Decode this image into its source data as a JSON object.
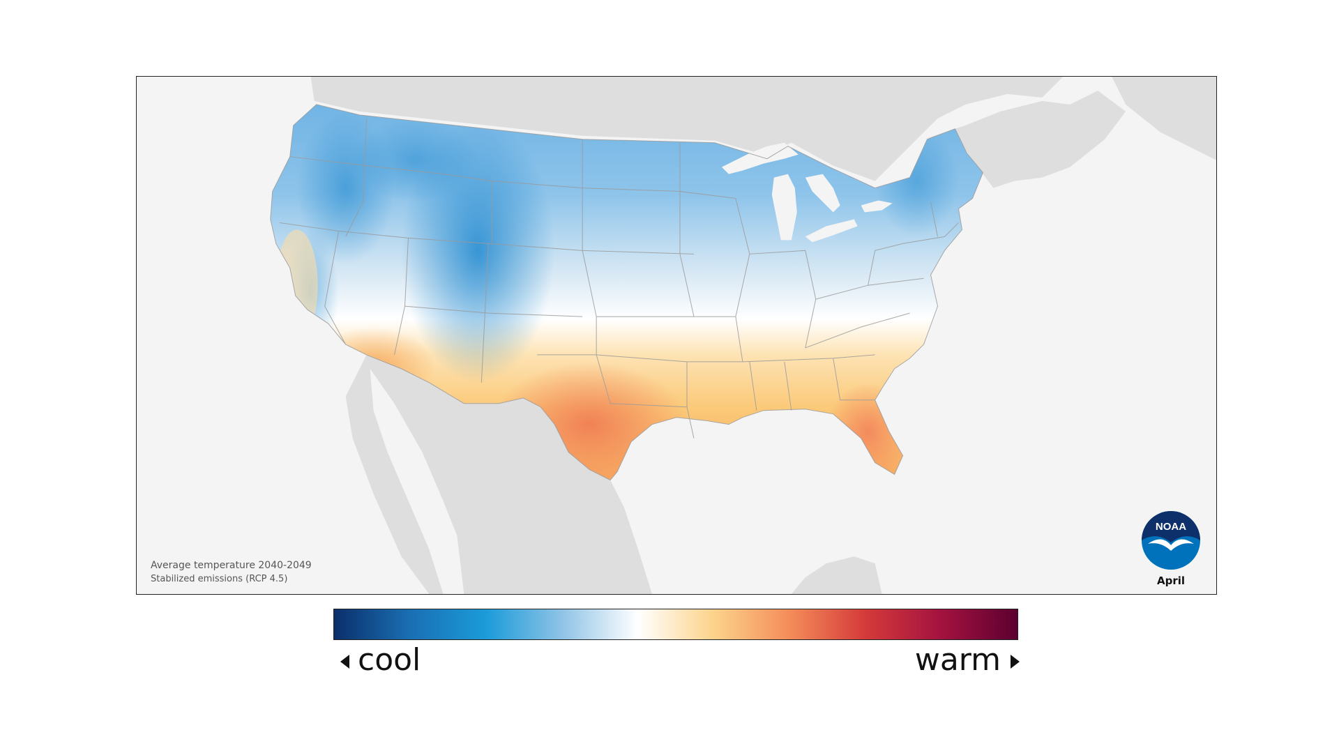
{
  "map": {
    "caption_line1": "Average temperature 2040-2049",
    "caption_line2": "Stabilized emissions (RCP 4.5)",
    "month": "April",
    "logo_text": "NOAA"
  },
  "legend": {
    "low_label": "cool",
    "high_label": "warm",
    "colors": [
      "#0b2f6b",
      "#1a6fb3",
      "#1b9bd9",
      "#8fc3e6",
      "#ffffff",
      "#fcd38a",
      "#f48c5a",
      "#d43a3a",
      "#a3123f",
      "#5c0030"
    ]
  },
  "colors": {
    "land_background": "#dedede",
    "water_background": "#f4f4f4",
    "state_borders": "#9a9a9a",
    "noaa_blue": "#0072bc",
    "noaa_navy": "#0d2f6a"
  }
}
